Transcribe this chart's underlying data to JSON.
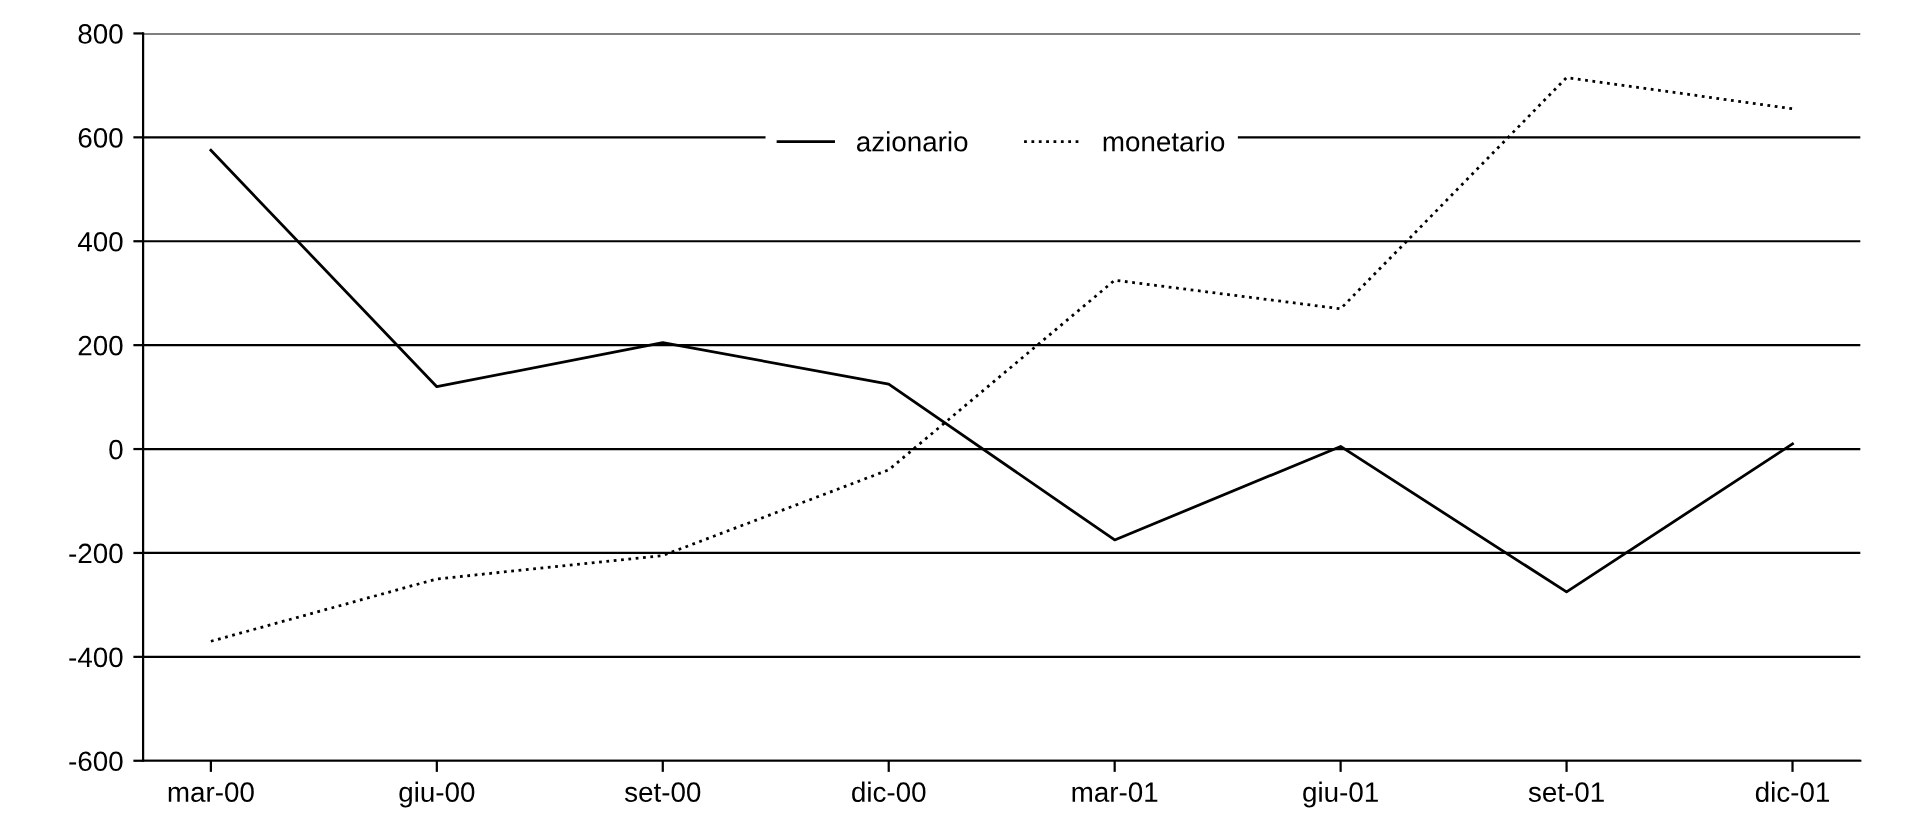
{
  "chart_data": {
    "type": "line",
    "categories": [
      "mar-00",
      "giu-00",
      "set-00",
      "dic-00",
      "mar-01",
      "giu-01",
      "set-01",
      "dic-01"
    ],
    "series": [
      {
        "name": "azionario",
        "color": "#000000",
        "line_style": "solid",
        "values": [
          575,
          120,
          205,
          125,
          -175,
          5,
          -275,
          10
        ]
      },
      {
        "name": "monetario",
        "color": "#000000",
        "line_style": "dotted",
        "values": [
          -370,
          -250,
          -205,
          -40,
          325,
          270,
          715,
          655
        ]
      }
    ],
    "ylim": [
      -600,
      800
    ],
    "yticks": [
      -600,
      -400,
      -200,
      0,
      200,
      400,
      600,
      800
    ],
    "grid": "y",
    "legend": "top",
    "marker": "none"
  }
}
